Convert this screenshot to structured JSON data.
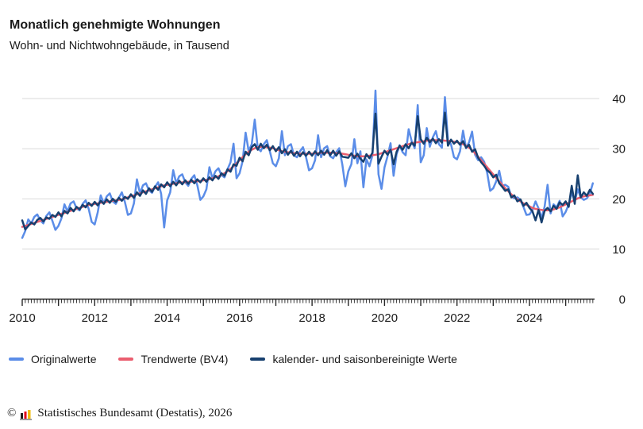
{
  "header": {
    "title": "Monatlich genehmigte Wohnungen",
    "subtitle": "Wohn- und Nichtwohngebäude, in Tausend"
  },
  "footer": {
    "copyright": "©",
    "source": "Statistisches Bundesamt (Destatis), 2026",
    "logo_icon_colors": {
      "bar1": "#1d1d1b",
      "bar2": "#e2001a",
      "bar3": "#f0bb00",
      "base": "#9c9c9c"
    }
  },
  "chart_data": {
    "type": "line",
    "title": "Monatlich genehmigte Wohnungen",
    "subtitle": "Wohn- und Nichtwohngebäude, in Tausend",
    "frequency": "monthly",
    "x_start": {
      "year": 2010,
      "month": 1
    },
    "x_end": {
      "year": 2025,
      "month": 10
    },
    "x_tick_labels": [
      "2010",
      "2012",
      "2014",
      "2016",
      "2018",
      "2020",
      "2022",
      "2024"
    ],
    "y_axis": {
      "side": "right",
      "ticks": [
        0,
        10,
        20,
        30,
        40
      ],
      "range": [
        0,
        42
      ]
    },
    "grid": "horizontal",
    "legend_position": "bottom",
    "style": {
      "grid_color": "#d9d9d9",
      "axis_color": "#262626",
      "text_color": "#1a1a1a"
    },
    "series": [
      {
        "key": "original",
        "name": "Originalwerte",
        "color": "#5b8de8",
        "values": [
          12.2,
          13.6,
          15.9,
          15.1,
          16.4,
          16.9,
          15.7,
          15.1,
          16.6,
          17.3,
          15.6,
          13.8,
          14.6,
          16.1,
          18.9,
          17.5,
          19.1,
          19.5,
          18.1,
          17.7,
          19.0,
          19.7,
          18.0,
          15.4,
          14.9,
          17.3,
          20.7,
          19.1,
          20.5,
          21.1,
          19.5,
          19.0,
          20.2,
          21.3,
          19.4,
          16.8,
          17.1,
          19.1,
          23.9,
          21.1,
          22.7,
          23.1,
          21.7,
          21.2,
          22.4,
          23.3,
          21.0,
          14.3,
          19.7,
          21.3,
          25.7,
          23.1,
          24.5,
          24.9,
          23.3,
          22.6,
          24.0,
          24.7,
          22.7,
          19.8,
          20.5,
          21.9,
          26.3,
          24.1,
          25.5,
          26.1,
          24.7,
          24.3,
          25.9,
          27.3,
          31.0,
          24.1,
          25.1,
          27.5,
          33.2,
          29.5,
          30.9,
          35.8,
          30.1,
          29.5,
          30.9,
          31.7,
          29.5,
          27.1,
          26.5,
          28.1,
          33.5,
          28.7,
          30.5,
          30.9,
          28.7,
          28.3,
          29.5,
          30.3,
          28.3,
          25.7,
          26.1,
          27.7,
          32.7,
          28.3,
          30.1,
          30.5,
          28.5,
          28.1,
          29.3,
          30.1,
          26.9,
          22.5,
          25.5,
          26.9,
          31.9,
          27.1,
          29.5,
          22.3,
          27.9,
          26.5,
          28.7,
          41.6,
          24.9,
          22.0,
          26.3,
          28.5,
          31.1,
          24.6,
          28.9,
          30.7,
          29.3,
          28.7,
          33.9,
          31.5,
          30.1,
          38.7,
          27.3,
          28.7,
          34.1,
          30.4,
          32.3,
          33.5,
          30.9,
          30.2,
          40.3,
          31.7,
          30.9,
          28.3,
          27.9,
          29.5,
          33.6,
          30.1,
          31.3,
          33.4,
          28.8,
          27.7,
          28.3,
          27.4,
          25.2,
          21.6,
          22.1,
          23.5,
          25.6,
          22.6,
          22.8,
          22.4,
          20.5,
          20.1,
          20.3,
          19.8,
          18.4,
          16.8,
          16.9,
          17.8,
          19.5,
          18.1,
          16.2,
          18.4,
          22.8,
          17.1,
          18.9,
          18.3,
          19.6,
          16.5,
          17.4,
          18.9,
          21.3,
          19.5,
          21.9,
          20.3,
          19.8,
          20.1,
          21.0,
          23.1
        ]
      },
      {
        "key": "trend",
        "name": "Trendwerte (BV4)",
        "color": "#ea5e6f",
        "values": [
          14.4,
          14.6,
          14.8,
          15.0,
          15.2,
          15.4,
          15.6,
          15.8,
          16.0,
          16.2,
          16.4,
          16.6,
          16.8,
          17.0,
          17.2,
          17.4,
          17.6,
          17.8,
          18.0,
          18.2,
          18.4,
          18.6,
          18.8,
          18.9,
          19.0,
          19.1,
          19.2,
          19.3,
          19.4,
          19.5,
          19.6,
          19.7,
          19.8,
          19.9,
          20.1,
          20.3,
          20.5,
          20.7,
          20.9,
          21.1,
          21.3,
          21.5,
          21.7,
          21.9,
          22.1,
          22.3,
          22.5,
          22.7,
          22.8,
          22.9,
          23.0,
          23.1,
          23.2,
          23.3,
          23.3,
          23.4,
          23.4,
          23.5,
          23.5,
          23.6,
          23.7,
          23.8,
          23.9,
          24.1,
          24.3,
          24.5,
          24.8,
          25.1,
          25.5,
          26.0,
          26.5,
          27.1,
          27.7,
          28.3,
          28.9,
          29.4,
          29.8,
          30.1,
          30.3,
          30.4,
          30.4,
          30.3,
          30.2,
          30.1,
          29.9,
          29.7,
          29.5,
          29.4,
          29.3,
          29.2,
          29.1,
          29.1,
          29.0,
          29.0,
          29.0,
          29.0,
          29.0,
          29.1,
          29.1,
          29.2,
          29.2,
          29.2,
          29.2,
          29.2,
          29.1,
          29.1,
          29.0,
          28.9,
          28.8,
          28.7,
          28.6,
          28.5,
          28.5,
          28.5,
          28.5,
          28.6,
          28.7,
          28.8,
          28.9,
          29.1,
          29.3,
          29.5,
          29.7,
          29.9,
          30.1,
          30.3,
          30.5,
          30.7,
          30.9,
          31.1,
          31.2,
          31.3,
          31.4,
          31.5,
          31.6,
          31.7,
          31.7,
          31.7,
          31.7,
          31.7,
          31.6,
          31.6,
          31.5,
          31.4,
          31.3,
          31.1,
          30.9,
          30.6,
          30.2,
          29.7,
          29.1,
          28.4,
          27.7,
          27.0,
          26.3,
          25.6,
          24.9,
          24.2,
          23.5,
          22.8,
          22.1,
          21.5,
          20.9,
          20.4,
          19.9,
          19.5,
          19.1,
          18.8,
          18.5,
          18.2,
          18.0,
          17.9,
          17.8,
          17.7,
          17.7,
          17.8,
          17.9,
          18.1,
          18.3,
          18.6,
          18.9,
          19.2,
          19.5,
          19.8,
          20.1,
          20.3,
          20.5,
          20.6,
          20.7,
          20.8
        ]
      },
      {
        "key": "adjusted",
        "name": "kalender- und saisonbereinigte Werte",
        "color": "#17406f",
        "values": [
          15.7,
          13.9,
          14.6,
          15.3,
          14.9,
          15.8,
          16.2,
          15.5,
          16.3,
          16.0,
          16.8,
          16.4,
          17.3,
          16.5,
          17.6,
          17.1,
          18.2,
          17.5,
          18.4,
          17.9,
          18.8,
          18.3,
          19.2,
          18.6,
          19.4,
          18.7,
          19.6,
          19.0,
          19.9,
          19.2,
          20.0,
          19.4,
          20.2,
          19.6,
          20.4,
          20.0,
          20.9,
          20.2,
          21.3,
          20.6,
          21.7,
          21.0,
          22.1,
          21.4,
          22.5,
          21.8,
          22.9,
          22.3,
          23.3,
          22.5,
          23.4,
          22.7,
          23.6,
          22.9,
          23.7,
          23.0,
          23.8,
          23.1,
          23.9,
          23.3,
          24.1,
          23.4,
          24.3,
          23.7,
          24.6,
          24.0,
          25.1,
          24.6,
          25.9,
          25.4,
          26.9,
          26.6,
          28.2,
          27.5,
          29.4,
          28.7,
          30.3,
          30.9,
          29.8,
          31.0,
          30.1,
          30.8,
          29.7,
          30.5,
          29.5,
          30.3,
          29.1,
          29.9,
          28.8,
          29.6,
          28.6,
          29.4,
          28.5,
          29.3,
          28.6,
          29.4,
          28.6,
          29.5,
          28.7,
          29.6,
          28.8,
          29.7,
          28.7,
          29.6,
          28.6,
          29.5,
          28.4,
          28.3,
          28.2,
          29.1,
          28.1,
          29.0,
          28.0,
          27.4,
          28.9,
          28.1,
          29.2,
          37.0,
          27.0,
          28.4,
          29.6,
          28.8,
          29.8,
          26.9,
          29.4,
          30.6,
          29.8,
          30.9,
          30.1,
          31.2,
          30.6,
          36.5,
          31.9,
          31.0,
          32.2,
          31.3,
          32.0,
          31.1,
          31.9,
          31.2,
          37.2,
          30.6,
          31.8,
          31.0,
          31.6,
          30.8,
          31.5,
          30.2,
          30.8,
          29.4,
          29.9,
          28.2,
          27.3,
          26.6,
          25.7,
          25.2,
          24.3,
          24.8,
          23.1,
          22.4,
          21.6,
          21.9,
          20.3,
          20.7,
          19.5,
          19.9,
          18.6,
          19.2,
          18.2,
          17.5,
          15.7,
          17.8,
          15.3,
          17.6,
          18.2,
          17.5,
          18.6,
          18.0,
          19.3,
          18.8,
          19.5,
          18.4,
          22.6,
          19.0,
          24.7,
          20.3,
          21.3,
          20.6,
          21.8,
          21.0
        ]
      }
    ]
  }
}
